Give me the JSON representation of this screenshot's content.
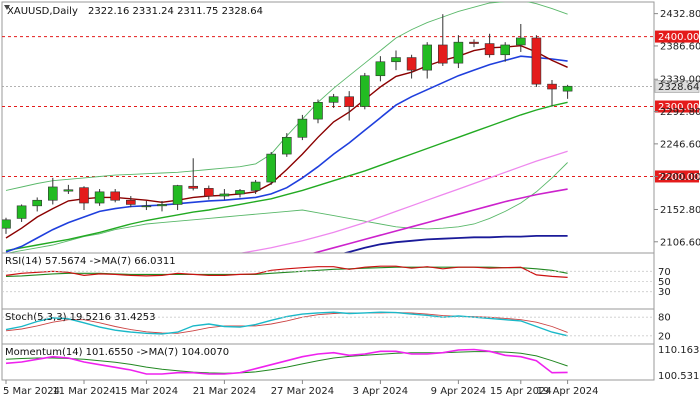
{
  "chart_data": {
    "type": "candlestick",
    "main": {
      "symbol_info": "XAUUSD,Daily",
      "ohlc_text": "2322.16 2331.24 2311.75 2328.64",
      "ylim": [
        2092,
        2448
      ],
      "ticks": [
        "2432.80",
        "2386.60",
        "2339.00",
        "2292.80",
        "2246.60",
        "2200.00",
        "2152.80",
        "2106.60"
      ],
      "tick_values": [
        2432.8,
        2386.6,
        2339.0,
        2292.8,
        2246.6,
        2200.0,
        2152.8,
        2106.6
      ],
      "levels": [
        {
          "value": 2400.0,
          "label": "2400.00",
          "color": "#e41b1b"
        },
        {
          "value": 2300.0,
          "label": "2300.00",
          "color": "#e41b1b"
        },
        {
          "value": 2200.0,
          "label": "2200.00",
          "color": "#e41b1b"
        }
      ],
      "current": {
        "value": 2328.64,
        "label": "2328.64"
      },
      "candles": [
        {
          "o": 2126,
          "h": 2141,
          "l": 2118,
          "c": 2138
        },
        {
          "o": 2140,
          "h": 2160,
          "l": 2135,
          "c": 2158
        },
        {
          "o": 2158,
          "h": 2170,
          "l": 2150,
          "c": 2166
        },
        {
          "o": 2166,
          "h": 2198,
          "l": 2160,
          "c": 2185
        },
        {
          "o": 2179,
          "h": 2188,
          "l": 2175,
          "c": 2181
        },
        {
          "o": 2184,
          "h": 2186,
          "l": 2152,
          "c": 2162
        },
        {
          "o": 2162,
          "h": 2182,
          "l": 2158,
          "c": 2178
        },
        {
          "o": 2178,
          "h": 2182,
          "l": 2163,
          "c": 2166
        },
        {
          "o": 2166,
          "h": 2172,
          "l": 2156,
          "c": 2160
        },
        {
          "o": 2158,
          "h": 2165,
          "l": 2152,
          "c": 2158
        },
        {
          "o": 2158,
          "h": 2165,
          "l": 2150,
          "c": 2160
        },
        {
          "o": 2160,
          "h": 2188,
          "l": 2152,
          "c": 2187
        },
        {
          "o": 2186,
          "h": 2226,
          "l": 2180,
          "c": 2183
        },
        {
          "o": 2183,
          "h": 2187,
          "l": 2167,
          "c": 2172
        },
        {
          "o": 2172,
          "h": 2182,
          "l": 2167,
          "c": 2175
        },
        {
          "o": 2175,
          "h": 2182,
          "l": 2170,
          "c": 2180
        },
        {
          "o": 2180,
          "h": 2195,
          "l": 2175,
          "c": 2192
        },
        {
          "o": 2192,
          "h": 2235,
          "l": 2188,
          "c": 2232
        },
        {
          "o": 2232,
          "h": 2262,
          "l": 2228,
          "c": 2256
        },
        {
          "o": 2256,
          "h": 2288,
          "l": 2252,
          "c": 2282
        },
        {
          "o": 2282,
          "h": 2310,
          "l": 2276,
          "c": 2306
        },
        {
          "o": 2306,
          "h": 2318,
          "l": 2298,
          "c": 2314
        },
        {
          "o": 2314,
          "h": 2322,
          "l": 2280,
          "c": 2300
        },
        {
          "o": 2300,
          "h": 2348,
          "l": 2296,
          "c": 2344
        },
        {
          "o": 2344,
          "h": 2372,
          "l": 2336,
          "c": 2364
        },
        {
          "o": 2364,
          "h": 2380,
          "l": 2352,
          "c": 2370
        },
        {
          "o": 2370,
          "h": 2374,
          "l": 2340,
          "c": 2352
        },
        {
          "o": 2352,
          "h": 2392,
          "l": 2340,
          "c": 2388
        },
        {
          "o": 2388,
          "h": 2432,
          "l": 2358,
          "c": 2362
        },
        {
          "o": 2362,
          "h": 2402,
          "l": 2355,
          "c": 2392
        },
        {
          "o": 2392,
          "h": 2396,
          "l": 2385,
          "c": 2390
        },
        {
          "o": 2390,
          "h": 2404,
          "l": 2370,
          "c": 2374
        },
        {
          "o": 2374,
          "h": 2392,
          "l": 2364,
          "c": 2388
        },
        {
          "o": 2388,
          "h": 2418,
          "l": 2378,
          "c": 2398
        },
        {
          "o": 2398,
          "h": 2402,
          "l": 2328,
          "c": 2332
        },
        {
          "o": 2332,
          "h": 2338,
          "l": 2300,
          "c": 2325
        },
        {
          "o": 2322,
          "h": 2331,
          "l": 2311,
          "c": 2329
        }
      ],
      "ma_fast": [
        2112,
        2126,
        2142,
        2154,
        2165,
        2168,
        2170,
        2170,
        2168,
        2166,
        2163,
        2166,
        2170,
        2172,
        2173,
        2175,
        2178,
        2190,
        2210,
        2232,
        2256,
        2278,
        2292,
        2310,
        2328,
        2343,
        2349,
        2358,
        2366,
        2372,
        2380,
        2384,
        2385,
        2387,
        2378,
        2366,
        2356
      ],
      "ma_mid": [
        2092,
        2100,
        2112,
        2124,
        2134,
        2142,
        2150,
        2154,
        2157,
        2158,
        2159,
        2161,
        2163,
        2165,
        2166,
        2168,
        2170,
        2175,
        2184,
        2198,
        2214,
        2232,
        2248,
        2266,
        2284,
        2302,
        2314,
        2324,
        2334,
        2344,
        2352,
        2360,
        2366,
        2372,
        2370,
        2368,
        2365
      ],
      "ma_slow": [
        2094,
        2098,
        2102,
        2106,
        2110,
        2115,
        2120,
        2126,
        2132,
        2137,
        2141,
        2145,
        2149,
        2152,
        2156,
        2160,
        2164,
        2168,
        2174,
        2180,
        2187,
        2194,
        2201,
        2208,
        2216,
        2224,
        2232,
        2240,
        2248,
        2256,
        2264,
        2272,
        2280,
        2288,
        2295,
        2301,
        2306
      ],
      "ma_long": [
        2030,
        2034,
        2038,
        2042,
        2046,
        2050,
        2054,
        2058,
        2062,
        2066,
        2070,
        2074,
        2078,
        2082,
        2086,
        2090,
        2094,
        2098,
        2103,
        2108,
        2114,
        2120,
        2127,
        2134,
        2142,
        2150,
        2158,
        2166,
        2174,
        2182,
        2190,
        2198,
        2206,
        2214,
        2222,
        2229,
        2236
      ],
      "ma_longer": [
        1990,
        1995,
        2000,
        2005,
        2010,
        2015,
        2020,
        2025,
        2030,
        2035,
        2040,
        2045,
        2050,
        2055,
        2060,
        2065,
        2070,
        2075,
        2080,
        2086,
        2092,
        2098,
        2104,
        2110,
        2116,
        2122,
        2128,
        2134,
        2140,
        2146,
        2152,
        2158,
        2164,
        2169,
        2174,
        2178,
        2182
      ],
      "ma_slowest": [
        1960,
        1966,
        1972,
        1978,
        1984,
        1990,
        1996,
        2002,
        2008,
        2014,
        2020,
        2026,
        2032,
        2038,
        2044,
        2050,
        2056,
        2062,
        2068,
        2074,
        2080,
        2086,
        2092,
        2098,
        2103,
        2106,
        2108,
        2110,
        2111,
        2112,
        2113,
        2113,
        2114,
        2114,
        2115,
        2115,
        2115
      ],
      "bb_upper": [
        2180,
        2185,
        2190,
        2194,
        2196,
        2198,
        2200,
        2202,
        2203,
        2204,
        2205,
        2206,
        2208,
        2210,
        2212,
        2214,
        2218,
        2232,
        2258,
        2282,
        2306,
        2326,
        2344,
        2362,
        2380,
        2398,
        2410,
        2420,
        2428,
        2436,
        2442,
        2448,
        2450,
        2452,
        2447,
        2440,
        2432
      ],
      "bb_lower": [
        2090,
        2094,
        2098,
        2102,
        2108,
        2114,
        2118,
        2124,
        2128,
        2132,
        2134,
        2136,
        2138,
        2140,
        2142,
        2144,
        2146,
        2148,
        2150,
        2152,
        2148,
        2144,
        2140,
        2136,
        2132,
        2128,
        2126,
        2125,
        2126,
        2128,
        2132,
        2140,
        2150,
        2162,
        2178,
        2198,
        2220
      ]
    },
    "rsi": {
      "title": "RSI(14) 57.5674  ->MA(7) 66.0311",
      "ylim": [
        0,
        100
      ],
      "ticks": [
        "70",
        "50",
        "30"
      ],
      "tick_values": [
        70,
        50,
        30
      ],
      "values": [
        62,
        66,
        68,
        70,
        68,
        62,
        65,
        64,
        62,
        61,
        62,
        66,
        64,
        62,
        62,
        64,
        65,
        72,
        75,
        77,
        79,
        79,
        74,
        78,
        80,
        80,
        76,
        79,
        75,
        78,
        78,
        76,
        77,
        78,
        63,
        60,
        58
      ],
      "ma": [
        60,
        61,
        63,
        65,
        66,
        66,
        66,
        65,
        64,
        64,
        64,
        64,
        64,
        64,
        64,
        64,
        64,
        66,
        68,
        70,
        72,
        74,
        75,
        76,
        77,
        78,
        78,
        78,
        78,
        78,
        78,
        78,
        77,
        77,
        75,
        72,
        66
      ]
    },
    "stoch": {
      "title": "Stoch(5,3,3) 19.5216 31.4253",
      "ylim": [
        0,
        100
      ],
      "ticks": [
        "80",
        "20"
      ],
      "tick_values": [
        80,
        20
      ],
      "values": [
        40,
        50,
        66,
        78,
        75,
        62,
        48,
        38,
        32,
        28,
        26,
        32,
        52,
        58,
        50,
        48,
        56,
        70,
        82,
        90,
        94,
        96,
        92,
        94,
        96,
        95,
        90,
        86,
        80,
        84,
        80,
        76,
        72,
        68,
        50,
        32,
        20
      ],
      "ma": [
        36,
        42,
        52,
        64,
        72,
        72,
        62,
        50,
        40,
        33,
        29,
        28,
        36,
        46,
        52,
        52,
        52,
        58,
        68,
        80,
        88,
        92,
        94,
        94,
        94,
        95,
        94,
        90,
        85,
        83,
        82,
        80,
        76,
        72,
        64,
        50,
        31
      ]
    },
    "momentum": {
      "title": "Momentum(14) 101.6550  ->MA(7) 104.0070",
      "ylim": [
        99.5,
        111.5
      ],
      "ticks": [
        "110.1632",
        "100.531"
      ],
      "tick_values": [
        110.1632,
        100.531
      ],
      "values": [
        105.0,
        105.5,
        106.5,
        107.5,
        107.0,
        105.5,
        104.5,
        103.5,
        102.5,
        101.0,
        101.0,
        101.5,
        101.5,
        101.0,
        101.0,
        101.5,
        103.0,
        104.5,
        106.0,
        107.5,
        108.5,
        109.0,
        108.0,
        108.5,
        109.5,
        109.5,
        108.5,
        108.5,
        109.0,
        110.0,
        110.2,
        109.5,
        108.0,
        107.5,
        106.0,
        101.5,
        101.6
      ],
      "ma": [
        106.5,
        106.8,
        107.0,
        107.0,
        106.8,
        106.5,
        106.0,
        105.4,
        104.6,
        103.6,
        102.8,
        102.2,
        101.7,
        101.4,
        101.3,
        101.4,
        101.8,
        102.6,
        103.6,
        104.8,
        106.0,
        107.0,
        107.6,
        108.0,
        108.4,
        108.8,
        109.0,
        109.0,
        109.0,
        109.2,
        109.4,
        109.4,
        109.2,
        108.8,
        107.8,
        106.0,
        104.0
      ]
    },
    "x_labels": [
      "5 Mar 2024",
      "11 Mar 2024",
      "15 Mar 2024",
      "21 Mar 2024",
      "27 Mar 2024",
      "3 Apr 2024",
      "9 Apr 2024",
      "15 Apr 2024",
      "19 Apr 2024"
    ],
    "x_label_index": [
      0,
      5,
      9,
      14,
      19,
      24,
      29,
      33,
      36
    ],
    "colors": {
      "up": "#22bb22",
      "down": "#e41b1b",
      "ma_fast": "#8b0000",
      "ma_mid": "#1f3fdd",
      "ma_slow": "#22aa22",
      "ma_long": "#ee88ee",
      "ma_longer": "#cc22cc",
      "ma_slowest": "#1a1a99",
      "bb": "#5ab86a",
      "osc_main": "#cc1111",
      "osc_ma": "#228822",
      "stoch_main": "#1ab8c8",
      "stoch_ma": "#cc4444",
      "mom_main": "#ee22ee",
      "mom_ma": "#228822",
      "level_bg": "#e41b1b",
      "current_bg": "#dddddd",
      "grid": "#cccccc",
      "axis": "#888888"
    }
  }
}
